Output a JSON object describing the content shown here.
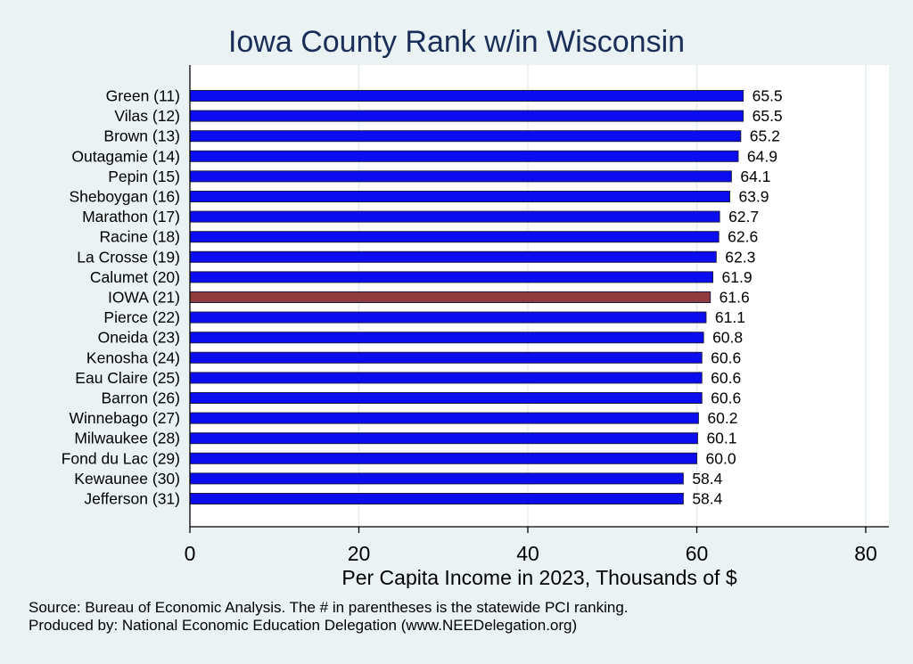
{
  "chart_data": {
    "type": "bar",
    "orientation": "horizontal",
    "title": "Iowa County Rank w/in Wisconsin",
    "xlabel": "Per Capita Income in 2023, Thousands of $",
    "ylabel": "",
    "xlim": [
      0,
      80
    ],
    "xticks": [
      0,
      20,
      40,
      60,
      80
    ],
    "grid": true,
    "categories": [
      "Green (11)",
      "Vilas (12)",
      "Brown (13)",
      "Outagamie (14)",
      "Pepin (15)",
      "Sheboygan (16)",
      "Marathon (17)",
      "Racine (18)",
      "La Crosse (19)",
      "Calumet (20)",
      "IOWA (21)",
      "Pierce (22)",
      "Oneida (23)",
      "Kenosha (24)",
      "Eau Claire (25)",
      "Barron (26)",
      "Winnebago (27)",
      "Milwaukee (28)",
      "Fond du Lac (29)",
      "Kewaunee (30)",
      "Jefferson (31)"
    ],
    "values": [
      65.5,
      65.5,
      65.2,
      64.9,
      64.1,
      63.9,
      62.7,
      62.6,
      62.3,
      61.9,
      61.6,
      61.1,
      60.8,
      60.6,
      60.6,
      60.6,
      60.2,
      60.1,
      60.0,
      58.4,
      58.4
    ],
    "value_labels": [
      "65.5",
      "65.5",
      "65.2",
      "64.9",
      "64.1",
      "63.9",
      "62.7",
      "62.6",
      "62.3",
      "61.9",
      "61.6",
      "61.1",
      "60.8",
      "60.6",
      "60.6",
      "60.6",
      "60.2",
      "60.1",
      "60.0",
      "58.4",
      "58.4"
    ],
    "highlight_index": 10,
    "colors": {
      "bar": "#0c0cf0",
      "highlight": "#903c3c",
      "background": "#eaf2f3",
      "plot_background": "#ffffff",
      "grid": "#e3edee",
      "title": "#1a2e57"
    }
  },
  "footnotes": {
    "source": "Source: Bureau of Economic Analysis. The # in parentheses is the statewide PCI ranking.",
    "producer": "Produced by: National Economic Education Delegation (www.NEEDelegation.org)"
  }
}
